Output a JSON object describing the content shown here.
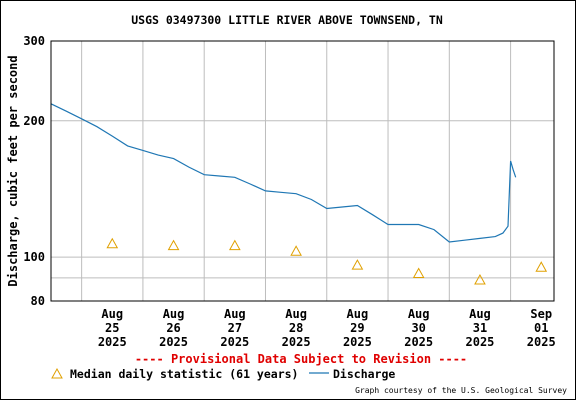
{
  "chart_data": {
    "type": "line",
    "title": "USGS 03497300 LITTLE RIVER ABOVE TOWNSEND, TN",
    "ylabel": "Discharge, cubic feet per second",
    "xlabel": "",
    "y_scale": "log",
    "ylim": [
      80,
      300
    ],
    "y_ticks": [
      {
        "value": 80,
        "label": "80"
      },
      {
        "value": 100,
        "label": "100"
      },
      {
        "value": 200,
        "label": "200"
      },
      {
        "value": 300,
        "label": "300"
      }
    ],
    "y_minor_gridlines": [
      90
    ],
    "x_range": [
      "2025-08-24T12:00",
      "2025-09-01T17:00"
    ],
    "x_ticks": [
      {
        "date": "2025-08-25",
        "lines": [
          "Aug",
          "25",
          "2025"
        ]
      },
      {
        "date": "2025-08-26",
        "lines": [
          "Aug",
          "26",
          "2025"
        ]
      },
      {
        "date": "2025-08-27",
        "lines": [
          "Aug",
          "27",
          "2025"
        ]
      },
      {
        "date": "2025-08-28",
        "lines": [
          "Aug",
          "28",
          "2025"
        ]
      },
      {
        "date": "2025-08-29",
        "lines": [
          "Aug",
          "29",
          "2025"
        ]
      },
      {
        "date": "2025-08-30",
        "lines": [
          "Aug",
          "30",
          "2025"
        ]
      },
      {
        "date": "2025-08-31",
        "lines": [
          "Aug",
          "31",
          "2025"
        ]
      },
      {
        "date": "2025-09-01",
        "lines": [
          "Sep",
          "01",
          "2025"
        ]
      }
    ],
    "grid": true,
    "series": [
      {
        "name": "Median daily statistic (61 years)",
        "kind": "marker",
        "marker": "triangle",
        "color": "#e0a000",
        "points": [
          {
            "x": "2025-08-25T12:00",
            "y": 107
          },
          {
            "x": "2025-08-26T12:00",
            "y": 106
          },
          {
            "x": "2025-08-27T12:00",
            "y": 106
          },
          {
            "x": "2025-08-28T12:00",
            "y": 103
          },
          {
            "x": "2025-08-29T12:00",
            "y": 96
          },
          {
            "x": "2025-08-30T12:00",
            "y": 92
          },
          {
            "x": "2025-08-31T12:00",
            "y": 89
          },
          {
            "x": "2025-09-01T12:00",
            "y": 95
          }
        ]
      },
      {
        "name": "Discharge",
        "kind": "line",
        "color": "#1f77b4",
        "points": [
          {
            "x": "2025-08-24T12:00",
            "y": 218
          },
          {
            "x": "2025-08-24T18:00",
            "y": 210
          },
          {
            "x": "2025-08-25T00:00",
            "y": 202
          },
          {
            "x": "2025-08-25T06:00",
            "y": 194
          },
          {
            "x": "2025-08-25T12:00",
            "y": 185
          },
          {
            "x": "2025-08-25T18:00",
            "y": 176
          },
          {
            "x": "2025-08-26T00:00",
            "y": 172
          },
          {
            "x": "2025-08-26T06:00",
            "y": 168
          },
          {
            "x": "2025-08-26T12:00",
            "y": 165
          },
          {
            "x": "2025-08-26T18:00",
            "y": 158
          },
          {
            "x": "2025-08-27T00:00",
            "y": 152
          },
          {
            "x": "2025-08-27T06:00",
            "y": 151
          },
          {
            "x": "2025-08-27T12:00",
            "y": 150
          },
          {
            "x": "2025-08-27T18:00",
            "y": 145
          },
          {
            "x": "2025-08-28T00:00",
            "y": 140
          },
          {
            "x": "2025-08-28T06:00",
            "y": 139
          },
          {
            "x": "2025-08-28T12:00",
            "y": 138
          },
          {
            "x": "2025-08-28T18:00",
            "y": 134
          },
          {
            "x": "2025-08-29T00:00",
            "y": 128
          },
          {
            "x": "2025-08-29T06:00",
            "y": 129
          },
          {
            "x": "2025-08-29T12:00",
            "y": 130
          },
          {
            "x": "2025-08-29T18:00",
            "y": 124
          },
          {
            "x": "2025-08-30T00:00",
            "y": 118
          },
          {
            "x": "2025-08-30T06:00",
            "y": 118
          },
          {
            "x": "2025-08-30T12:00",
            "y": 118
          },
          {
            "x": "2025-08-30T18:00",
            "y": 115
          },
          {
            "x": "2025-08-31T00:00",
            "y": 108
          },
          {
            "x": "2025-08-31T06:00",
            "y": 109
          },
          {
            "x": "2025-08-31T12:00",
            "y": 110
          },
          {
            "x": "2025-08-31T18:00",
            "y": 111
          },
          {
            "x": "2025-08-31T21:00",
            "y": 113
          },
          {
            "x": "2025-08-31T23:00",
            "y": 117
          },
          {
            "x": "2025-09-01T00:00",
            "y": 163
          },
          {
            "x": "2025-09-01T01:00",
            "y": 156
          },
          {
            "x": "2025-09-01T02:00",
            "y": 150
          }
        ]
      }
    ],
    "provisional_note": "---- Provisional Data Subject to Revision ----",
    "legend_placement": "bottom-left",
    "credit": "Graph courtesy of the U.S. Geological Survey"
  }
}
